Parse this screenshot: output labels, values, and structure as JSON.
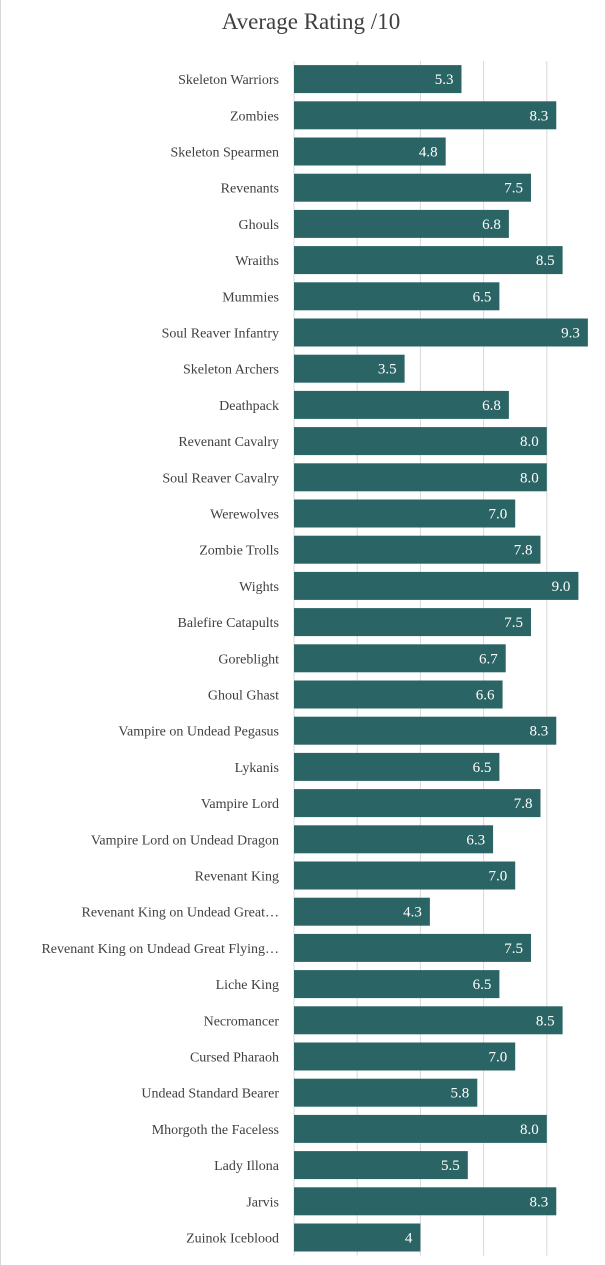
{
  "chart_data": {
    "type": "bar",
    "orientation": "horizontal",
    "title": "Average Rating /10",
    "categories": [
      "Skeleton Warriors",
      "Zombies",
      "Skeleton Spearmen",
      "Revenants",
      "Ghouls",
      "Wraiths",
      "Mummies",
      "Soul Reaver Infantry",
      "Skeleton Archers",
      "Deathpack",
      "Revenant Cavalry",
      "Soul Reaver Cavalry",
      "Werewolves",
      "Zombie Trolls",
      "Wights",
      "Balefire Catapults",
      "Goreblight",
      "Ghoul Ghast",
      "Vampire on Undead Pegasus",
      "Lykanis",
      "Vampire Lord",
      "Vampire Lord on Undead Dragon",
      "Revenant King",
      "Revenant King on Undead Great…",
      "Revenant King on Undead Great Flying…",
      "Liche King",
      "Necromancer",
      "Cursed Pharaoh",
      "Undead Standard Bearer",
      "Mhorgoth the Faceless",
      "Lady Illona",
      "Jarvis",
      "Zuinok Iceblood"
    ],
    "values": [
      5.3,
      8.3,
      4.8,
      7.5,
      6.8,
      8.5,
      6.5,
      9.3,
      3.5,
      6.8,
      8.0,
      8.0,
      7.0,
      7.8,
      9.0,
      7.5,
      6.7,
      6.6,
      8.3,
      6.5,
      7.8,
      6.3,
      7.0,
      4.3,
      7.5,
      6.5,
      8.5,
      7.0,
      5.8,
      8.0,
      5.5,
      8.3,
      4
    ],
    "value_labels": [
      "5.3",
      "8.3",
      "4.8",
      "7.5",
      "6.8",
      "8.5",
      "6.5",
      "9.3",
      "3.5",
      "6.8",
      "8.0",
      "8.0",
      "7.0",
      "7.8",
      "9.0",
      "7.5",
      "6.7",
      "6.6",
      "8.3",
      "6.5",
      "7.8",
      "6.3",
      "7.0",
      "4.3",
      "7.5",
      "6.5",
      "8.5",
      "7.0",
      "5.8",
      "8.0",
      "5.5",
      "8.3",
      "4"
    ],
    "xlim": [
      0,
      10
    ],
    "grid": true,
    "legend": "none",
    "bar_color": "#2a6464",
    "label_color": "#ffffff"
  }
}
